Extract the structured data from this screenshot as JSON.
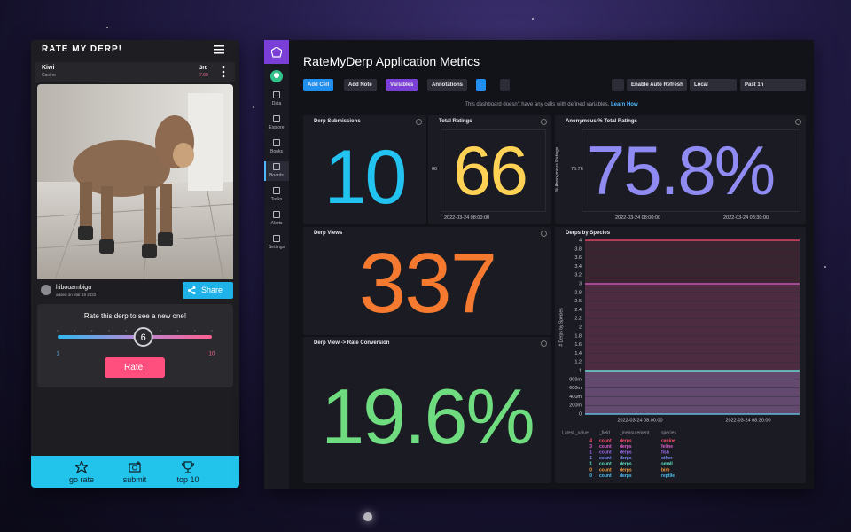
{
  "phone": {
    "title": "RATE MY DERP!",
    "pet_name": "Kiwi",
    "pet_type": "Canine",
    "rank": "3rd",
    "score": "7.69",
    "username": "hibouambigu",
    "added": "added on Mar 19 2022",
    "share": "Share",
    "prompt": "Rate this derp to see a new one!",
    "slider": {
      "value": 6,
      "min": 1,
      "max": 10
    },
    "rate_button": "Rate!",
    "nav": [
      "go rate",
      "submit",
      "top 10"
    ]
  },
  "dashboard": {
    "title": "RateMyDerp Application Metrics",
    "sidebar": [
      "Data",
      "Explore",
      "Books",
      "Boards",
      "Tasks",
      "Alerts",
      "Settings"
    ],
    "toolbar": [
      "Add Cell",
      "Add Note",
      "Variables",
      "Annotations"
    ],
    "toolbar_right": [
      "Enable Auto Refresh",
      "Local",
      "Past 1h"
    ],
    "notice": "This dashboard doesn't have any cells with defined variables.",
    "notice_link": "Learn How",
    "cells": [
      {
        "title": "Derp Submissions",
        "value": "10"
      },
      {
        "title": "Total Ratings",
        "value": "66",
        "y_tick": "66",
        "x_labels": [
          "2022-03-24 08:00:00"
        ]
      },
      {
        "title": "Anonymous % Total Ratings",
        "value": "75.8%",
        "y_label": "% Anonymous Ratings",
        "y_tick": "75.76",
        "x_labels": [
          "2022-03-24 08:00:00",
          "2022-03-24 08:30:00"
        ]
      },
      {
        "title": "Derp Views",
        "value": "337"
      },
      {
        "title": "Derp View -> Rate Conversion",
        "value": "19.6%"
      }
    ],
    "species_chart": {
      "type": "line",
      "title": "Derps by Species",
      "y_label": "# Derps by Species",
      "ylim": [
        0,
        4
      ],
      "yticks": [
        0,
        {
          "value": 0.2,
          "label": "200m"
        },
        {
          "value": 0.4,
          "label": "400m"
        },
        {
          "value": 0.6,
          "label": "600m"
        },
        {
          "value": 0.8,
          "label": "800m"
        },
        1,
        1.2,
        1.4,
        1.6,
        1.8,
        2,
        2.2,
        2.4,
        2.6,
        2.8,
        3,
        3.2,
        3.4,
        3.6,
        3.8,
        4
      ],
      "x_labels": [
        "2022-03-24 08:00:00",
        "2022-03-24 08:30:00"
      ],
      "legend_headers": [
        "Latest _value",
        "_field",
        "_measurement",
        "species"
      ],
      "series": [
        {
          "name": "canine",
          "color": "#ff4d6d",
          "field": "count",
          "measurement": "derps",
          "value": 4
        },
        {
          "name": "feline",
          "color": "#e05fd0",
          "field": "count",
          "measurement": "derps",
          "value": 3
        },
        {
          "name": "fish",
          "color": "#9b6bf2",
          "field": "count",
          "measurement": "derps",
          "value": 1
        },
        {
          "name": "other",
          "color": "#7a8cf5",
          "field": "count",
          "measurement": "derps",
          "value": 1
        },
        {
          "name": "small",
          "color": "#5ee6c8",
          "field": "count",
          "measurement": "derps",
          "value": 1
        },
        {
          "name": "birb",
          "color": "#f5a142",
          "field": "count",
          "measurement": "derps",
          "value": 0
        },
        {
          "name": "reptile",
          "color": "#4fc3f7",
          "field": "count",
          "measurement": "derps",
          "value": 0
        }
      ]
    }
  }
}
